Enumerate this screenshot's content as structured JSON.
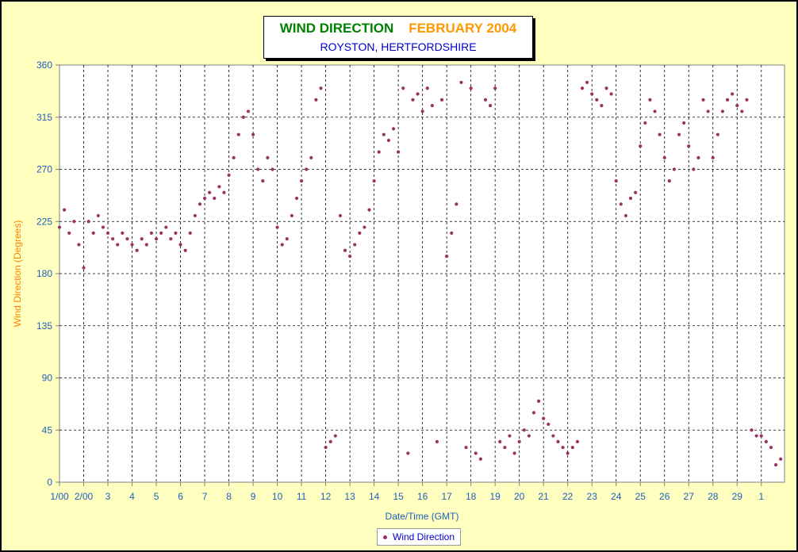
{
  "chart_data": {
    "type": "scatter",
    "title": "WIND DIRECTION",
    "title_month": "FEBRUARY 2004",
    "subtitle": "ROYSTON, HERTFORDSHIRE",
    "xlabel": "Date/Time (GMT)",
    "ylabel": "Wind Direction (Degrees)",
    "ylim": [
      0,
      360
    ],
    "xlim": [
      "2004-02-01",
      "2004-03-01 23:00"
    ],
    "y_ticks": [
      0,
      45,
      90,
      135,
      180,
      225,
      270,
      315,
      360
    ],
    "x_tick_labels": [
      "1/00",
      "2/00",
      "3",
      "4",
      "5",
      "6",
      "7",
      "8",
      "9",
      "10",
      "11",
      "12",
      "13",
      "14",
      "15",
      "16",
      "17",
      "18",
      "19",
      "20",
      "21",
      "22",
      "23",
      "24",
      "25",
      "26",
      "27",
      "28",
      "29",
      "1"
    ],
    "grid": true,
    "legend_position": "bottom-center",
    "series": [
      {
        "name": "Wind Direction",
        "color": "#993366",
        "x_unit": "day of February 2004 (fractional)",
        "y_unit": "degrees",
        "points": [
          [
            1.0,
            220
          ],
          [
            1.2,
            235
          ],
          [
            1.4,
            215
          ],
          [
            1.6,
            225
          ],
          [
            1.8,
            205
          ],
          [
            2.0,
            185
          ],
          [
            2.2,
            225
          ],
          [
            2.4,
            215
          ],
          [
            2.6,
            230
          ],
          [
            2.8,
            220
          ],
          [
            3.0,
            215
          ],
          [
            3.2,
            210
          ],
          [
            3.4,
            205
          ],
          [
            3.6,
            215
          ],
          [
            3.8,
            210
          ],
          [
            4.0,
            205
          ],
          [
            4.2,
            200
          ],
          [
            4.4,
            210
          ],
          [
            4.6,
            205
          ],
          [
            4.8,
            215
          ],
          [
            5.0,
            210
          ],
          [
            5.2,
            215
          ],
          [
            5.4,
            220
          ],
          [
            5.6,
            210
          ],
          [
            5.8,
            215
          ],
          [
            6.0,
            205
          ],
          [
            6.2,
            200
          ],
          [
            6.4,
            215
          ],
          [
            6.6,
            230
          ],
          [
            6.8,
            240
          ],
          [
            7.0,
            245
          ],
          [
            7.2,
            250
          ],
          [
            7.4,
            245
          ],
          [
            7.6,
            255
          ],
          [
            7.8,
            250
          ],
          [
            8.0,
            265
          ],
          [
            8.2,
            280
          ],
          [
            8.4,
            300
          ],
          [
            8.6,
            315
          ],
          [
            8.8,
            320
          ],
          [
            9.0,
            300
          ],
          [
            9.2,
            270
          ],
          [
            9.4,
            260
          ],
          [
            9.6,
            280
          ],
          [
            9.8,
            270
          ],
          [
            10.0,
            220
          ],
          [
            10.2,
            205
          ],
          [
            10.4,
            210
          ],
          [
            10.6,
            230
          ],
          [
            10.8,
            245
          ],
          [
            11.0,
            260
          ],
          [
            11.2,
            270
          ],
          [
            11.4,
            280
          ],
          [
            11.6,
            330
          ],
          [
            11.8,
            340
          ],
          [
            12.0,
            30
          ],
          [
            12.2,
            35
          ],
          [
            12.4,
            40
          ],
          [
            12.6,
            230
          ],
          [
            12.8,
            200
          ],
          [
            13.0,
            195
          ],
          [
            13.2,
            205
          ],
          [
            13.4,
            215
          ],
          [
            13.6,
            220
          ],
          [
            13.8,
            235
          ],
          [
            14.0,
            260
          ],
          [
            14.2,
            285
          ],
          [
            14.4,
            300
          ],
          [
            14.6,
            295
          ],
          [
            14.8,
            305
          ],
          [
            15.0,
            285
          ],
          [
            15.2,
            340
          ],
          [
            15.4,
            25
          ],
          [
            15.6,
            330
          ],
          [
            15.8,
            335
          ],
          [
            16.0,
            320
          ],
          [
            16.2,
            340
          ],
          [
            16.4,
            325
          ],
          [
            16.6,
            35
          ],
          [
            16.8,
            330
          ],
          [
            17.0,
            195
          ],
          [
            17.2,
            215
          ],
          [
            17.4,
            240
          ],
          [
            17.6,
            345
          ],
          [
            17.8,
            30
          ],
          [
            18.0,
            340
          ],
          [
            18.2,
            25
          ],
          [
            18.4,
            20
          ],
          [
            18.6,
            330
          ],
          [
            18.8,
            325
          ],
          [
            19.0,
            340
          ],
          [
            19.2,
            35
          ],
          [
            19.4,
            30
          ],
          [
            19.6,
            40
          ],
          [
            19.8,
            25
          ],
          [
            20.0,
            35
          ],
          [
            20.2,
            45
          ],
          [
            20.4,
            40
          ],
          [
            20.6,
            60
          ],
          [
            20.8,
            70
          ],
          [
            21.0,
            55
          ],
          [
            21.2,
            50
          ],
          [
            21.4,
            40
          ],
          [
            21.6,
            35
          ],
          [
            21.8,
            30
          ],
          [
            22.0,
            25
          ],
          [
            22.2,
            30
          ],
          [
            22.4,
            35
          ],
          [
            22.6,
            340
          ],
          [
            22.8,
            345
          ],
          [
            23.0,
            335
          ],
          [
            23.2,
            330
          ],
          [
            23.4,
            325
          ],
          [
            23.6,
            340
          ],
          [
            23.8,
            335
          ],
          [
            24.0,
            260
          ],
          [
            24.2,
            240
          ],
          [
            24.4,
            230
          ],
          [
            24.6,
            245
          ],
          [
            24.8,
            250
          ],
          [
            25.0,
            290
          ],
          [
            25.2,
            310
          ],
          [
            25.4,
            330
          ],
          [
            25.6,
            320
          ],
          [
            25.8,
            300
          ],
          [
            26.0,
            280
          ],
          [
            26.2,
            260
          ],
          [
            26.4,
            270
          ],
          [
            26.6,
            300
          ],
          [
            26.8,
            310
          ],
          [
            27.0,
            290
          ],
          [
            27.2,
            270
          ],
          [
            27.4,
            280
          ],
          [
            27.6,
            330
          ],
          [
            27.8,
            320
          ],
          [
            28.0,
            280
          ],
          [
            28.2,
            300
          ],
          [
            28.4,
            320
          ],
          [
            28.6,
            330
          ],
          [
            28.8,
            335
          ],
          [
            29.0,
            325
          ],
          [
            29.2,
            320
          ],
          [
            29.4,
            330
          ],
          [
            29.6,
            45
          ],
          [
            29.8,
            40
          ],
          [
            30.0,
            40
          ],
          [
            30.2,
            35
          ],
          [
            30.4,
            30
          ],
          [
            30.6,
            15
          ],
          [
            30.8,
            20
          ]
        ]
      }
    ]
  }
}
